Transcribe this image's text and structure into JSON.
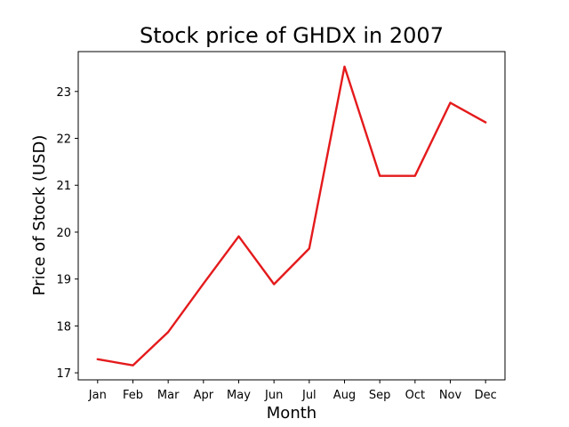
{
  "chart_data": {
    "type": "line",
    "title": "Stock price of GHDX in 2007",
    "xlabel": "Month",
    "ylabel": "Price of Stock (USD)",
    "categories": [
      "Jan",
      "Feb",
      "Mar",
      "Apr",
      "May",
      "Jun",
      "Jul",
      "Aug",
      "Sep",
      "Oct",
      "Nov",
      "Dec"
    ],
    "series": [
      {
        "color": "#e41a1c",
        "values": [
          17.29,
          17.16,
          17.87,
          18.9,
          19.91,
          18.89,
          19.65,
          23.53,
          21.2,
          21.2,
          22.76,
          22.34
        ]
      }
    ],
    "yticks": [
      17,
      18,
      19,
      20,
      21,
      22,
      23
    ],
    "ylim": [
      16.85,
      23.85
    ],
    "grid": false,
    "legend": "none"
  }
}
